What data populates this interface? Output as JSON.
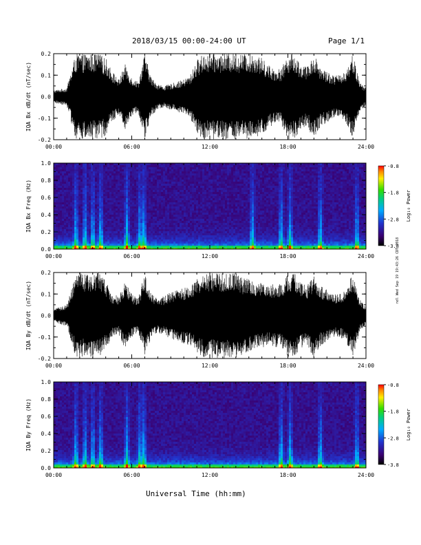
{
  "header": {
    "title": "2018/03/15  00:00-24:00 UT",
    "page": "Page 1/1"
  },
  "footer": {
    "xlabel": "Universal Time (hh:mm)"
  },
  "side_stamp": "ndl Wed Sep 19 19:43:26 CDT 2018",
  "colorbar": {
    "title": "Log₁₀ Power",
    "ticks": [
      "-0.8",
      "-1.8",
      "-2.8",
      "-3.8"
    ],
    "range": [
      -3.8,
      -0.8
    ]
  },
  "chart_data": [
    {
      "type": "line",
      "ylabel": "IQA Bx dB/dt (nT/sec)",
      "ylim": [
        -0.2,
        0.2
      ],
      "yticks": [
        "0.2",
        "0.1",
        "0.0",
        "-0.1",
        "-0.2"
      ],
      "xticks": [
        "00:00",
        "06:00",
        "12:00",
        "18:00",
        "24:00"
      ],
      "x_hours": [
        0,
        1,
        1.7,
        2,
        2.5,
        3,
        3.5,
        4,
        4.5,
        5,
        5.5,
        6,
        6.5,
        7,
        7.5,
        8,
        8.5,
        9,
        9.5,
        10,
        10.5,
        11,
        11.5,
        12,
        12.5,
        13,
        13.5,
        14,
        14.5,
        15,
        15.5,
        16,
        16.5,
        17,
        17.5,
        18,
        18.5,
        19,
        19.5,
        20,
        20.5,
        21,
        21.5,
        22,
        22.5,
        23,
        23.5,
        24
      ],
      "amplitude": [
        0.03,
        0.04,
        0.2,
        0.2,
        0.2,
        0.2,
        0.2,
        0.18,
        0.12,
        0.08,
        0.15,
        0.09,
        0.07,
        0.2,
        0.09,
        0.06,
        0.05,
        0.06,
        0.07,
        0.08,
        0.1,
        0.17,
        0.2,
        0.2,
        0.2,
        0.2,
        0.2,
        0.2,
        0.2,
        0.2,
        0.2,
        0.18,
        0.15,
        0.13,
        0.13,
        0.2,
        0.2,
        0.15,
        0.14,
        0.2,
        0.14,
        0.12,
        0.1,
        0.1,
        0.13,
        0.2,
        0.07,
        0.04
      ]
    },
    {
      "type": "heatmap",
      "ylabel": "IQA Bx Freq (Hz)",
      "ylim": [
        0.0,
        1.0
      ],
      "yticks": [
        "1.0",
        "0.8",
        "0.6",
        "0.4",
        "0.2",
        "0.0"
      ],
      "xticks": [
        "00:00",
        "06:00",
        "12:00",
        "18:00",
        "24:00"
      ],
      "zlabel": "Log₁₀ Power",
      "zlim": [
        -3.8,
        -0.8
      ],
      "bursts_hours": [
        1.7,
        2.4,
        3.0,
        3.6,
        5.6,
        6.6,
        6.9,
        15.2,
        17.4,
        18.1,
        20.4,
        23.2
      ]
    },
    {
      "type": "line",
      "ylabel": "IQA By dB/dt (nT/sec)",
      "ylim": [
        -0.2,
        0.2
      ],
      "yticks": [
        "0.2",
        "0.1",
        "0.0",
        "-0.1",
        "-0.2"
      ],
      "xticks": [
        "00:00",
        "06:00",
        "12:00",
        "18:00",
        "24:00"
      ],
      "x_hours": [
        0,
        1,
        1.7,
        2,
        2.5,
        3,
        3.5,
        4,
        4.5,
        5,
        5.5,
        6,
        6.5,
        7,
        7.5,
        8,
        8.5,
        9,
        9.5,
        10,
        10.5,
        11,
        11.5,
        12,
        12.5,
        13,
        13.5,
        14,
        14.5,
        15,
        15.5,
        16,
        16.5,
        17,
        17.5,
        18,
        18.5,
        19,
        19.5,
        20,
        20.5,
        21,
        21.5,
        22,
        22.5,
        23,
        23.5,
        24
      ],
      "amplitude": [
        0.03,
        0.05,
        0.2,
        0.2,
        0.19,
        0.2,
        0.2,
        0.16,
        0.1,
        0.09,
        0.16,
        0.1,
        0.08,
        0.2,
        0.1,
        0.08,
        0.09,
        0.11,
        0.12,
        0.13,
        0.14,
        0.17,
        0.2,
        0.2,
        0.2,
        0.2,
        0.2,
        0.2,
        0.18,
        0.17,
        0.16,
        0.15,
        0.14,
        0.15,
        0.15,
        0.2,
        0.2,
        0.15,
        0.14,
        0.2,
        0.14,
        0.12,
        0.1,
        0.1,
        0.13,
        0.2,
        0.08,
        0.04
      ]
    },
    {
      "type": "heatmap",
      "ylabel": "IQA By Freq (Hz)",
      "ylim": [
        0.0,
        1.0
      ],
      "yticks": [
        "1.0",
        "0.8",
        "0.6",
        "0.4",
        "0.2",
        "0.0"
      ],
      "xticks": [
        "00:00",
        "06:00",
        "12:00",
        "18:00",
        "24:00"
      ],
      "zlabel": "Log₁₀ Power",
      "zlim": [
        -3.8,
        -0.8
      ],
      "bursts_hours": [
        1.7,
        2.4,
        3.0,
        3.6,
        5.6,
        6.6,
        6.9,
        17.4,
        18.1,
        20.4,
        23.2
      ]
    }
  ]
}
